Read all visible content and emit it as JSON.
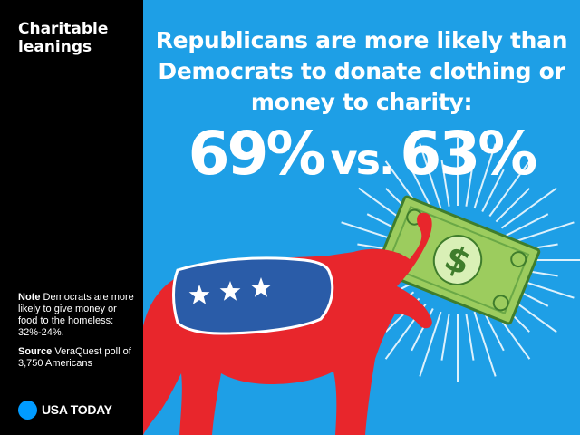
{
  "sidebar": {
    "title": "Charitable leanings",
    "note_label": "Note",
    "note_text": "Democrats are more likely to give money or food to the homeless: 32%-24%.",
    "source_label": "Source",
    "source_text": "VeraQuest poll of 3,750 Americans",
    "logo_text": "USA TODAY"
  },
  "main": {
    "headline": "Republicans are more likely than Democrats to donate clothing or money to charity:",
    "stat_left": "69%",
    "stat_vs": "vs.",
    "stat_right": "63%"
  },
  "colors": {
    "background_blue": "#1e9fe6",
    "elephant_red": "#e8262c",
    "blanket_blue": "#2a5ca8",
    "money_green": "#9ccc5e",
    "logo_blue": "#009bff"
  },
  "chart_data": {
    "type": "bar",
    "title": "Republicans are more likely than Democrats to donate clothing or money to charity:",
    "categories": [
      "Republicans",
      "Democrats"
    ],
    "values": [
      69,
      63
    ],
    "unit": "%"
  }
}
